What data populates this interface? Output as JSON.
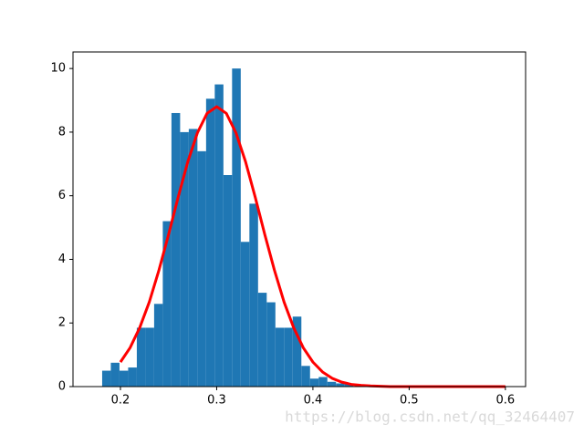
{
  "chart_data": {
    "type": "histogram",
    "bins": [
      0.181,
      0.19,
      0.199,
      0.208,
      0.217,
      0.226,
      0.235,
      0.244,
      0.253,
      0.262,
      0.271,
      0.28,
      0.289,
      0.298,
      0.307,
      0.316,
      0.325,
      0.334,
      0.343,
      0.352,
      0.361,
      0.37,
      0.379,
      0.388,
      0.397,
      0.406,
      0.415,
      0.424,
      0.433,
      0.442
    ],
    "values": [
      0.5,
      0.75,
      0.5,
      0.6,
      1.85,
      1.85,
      2.6,
      5.2,
      8.6,
      8,
      8.1,
      7.4,
      9.05,
      9.5,
      6.65,
      10,
      4.55,
      5.75,
      2.95,
      2.65,
      1.85,
      1.85,
      2.2,
      0.65,
      0.25,
      0.3,
      0.15,
      0.1,
      0.1
    ],
    "color": "#1f77b4",
    "curve": {
      "type": "line",
      "color": "#ff0000",
      "x": [
        0.2,
        0.21,
        0.22,
        0.23,
        0.24,
        0.25,
        0.26,
        0.27,
        0.28,
        0.29,
        0.3,
        0.31,
        0.32,
        0.33,
        0.34,
        0.35,
        0.36,
        0.37,
        0.38,
        0.39,
        0.4,
        0.41,
        0.42,
        0.43,
        0.44,
        0.45,
        0.46,
        0.47,
        0.48,
        0.49,
        0.5,
        0.51,
        0.52,
        0.53,
        0.54,
        0.55,
        0.56,
        0.57,
        0.58,
        0.59,
        0.6
      ],
      "values": [
        0.77,
        1.22,
        1.85,
        2.66,
        3.66,
        4.78,
        5.96,
        7.07,
        7.98,
        8.59,
        8.8,
        8.59,
        7.98,
        7.07,
        5.96,
        4.78,
        3.66,
        2.66,
        1.85,
        1.22,
        0.77,
        0.46,
        0.26,
        0.14,
        0.07,
        0.04,
        0.02,
        0.01,
        0,
        0,
        0,
        0,
        0,
        0,
        0,
        0,
        0,
        0,
        0,
        0,
        0
      ]
    },
    "xlim": [
      0.1507,
      0.621
    ],
    "ylim": [
      0,
      10.52
    ],
    "xticks": [
      0.2,
      0.3,
      0.4,
      0.5,
      0.6
    ],
    "yticks": [
      0,
      2,
      4,
      6,
      8,
      10
    ],
    "watermark": "https://blog.csdn.net/qq_32464407"
  }
}
